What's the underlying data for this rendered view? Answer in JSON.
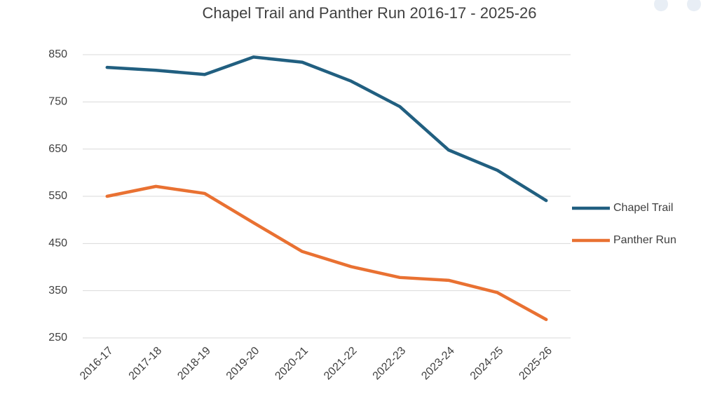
{
  "chart_data": {
    "type": "line",
    "title": "Chapel Trail and Panther Run 2016-17 - 2025-26",
    "categories": [
      "2016-17",
      "2017-18",
      "2018-19",
      "2019-20",
      "2020-21",
      "2021-22",
      "2022-23",
      "2023-24",
      "2024-25",
      "2025-26"
    ],
    "series": [
      {
        "name": "Chapel Trail",
        "color": "#215f80",
        "values": [
          823,
          817,
          808,
          845,
          834,
          794,
          740,
          648,
          605,
          541
        ]
      },
      {
        "name": "Panther Run",
        "color": "#e97132",
        "values": [
          550,
          571,
          556,
          494,
          433,
          401,
          378,
          372,
          346,
          289
        ]
      }
    ],
    "ylim": [
      250,
      850
    ],
    "yticks": [
      250,
      350,
      450,
      550,
      650,
      750,
      850
    ],
    "grid": true,
    "legend": "right"
  }
}
